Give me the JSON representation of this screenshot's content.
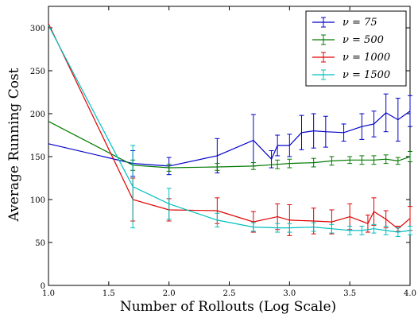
{
  "chart_data": {
    "type": "line",
    "title": "",
    "xlabel": "Number of Rollouts (Log Scale)",
    "ylabel": "Average Running Cost",
    "xlim": [
      1.0,
      4.0
    ],
    "ylim": [
      0,
      325
    ],
    "x_ticks": [
      "1.0",
      "1.5",
      "2.0",
      "2.5",
      "3.0",
      "3.5",
      "4.0"
    ],
    "y_ticks": [
      "0",
      "50",
      "100",
      "150",
      "200",
      "250",
      "300"
    ],
    "grid": false,
    "legend_position": "top-right",
    "series": [
      {
        "name": "ν = 75",
        "color": "#0000cc",
        "x": [
          1.0,
          1.7,
          2.0,
          2.4,
          2.7,
          2.85,
          2.9,
          3.0,
          3.1,
          3.2,
          3.3,
          3.45,
          3.6,
          3.7,
          3.8,
          3.9,
          4.0
        ],
        "y": [
          165,
          142,
          139,
          151,
          169,
          147,
          163,
          163,
          178,
          180,
          179,
          178,
          185,
          188,
          201,
          193,
          203
        ],
        "err": [
          0,
          15,
          10,
          20,
          30,
          10,
          12,
          13,
          20,
          20,
          18,
          10,
          15,
          15,
          22,
          25,
          18
        ]
      },
      {
        "name": "ν = 500",
        "color": "#007a00",
        "x": [
          1.0,
          1.7,
          2.0,
          2.4,
          2.7,
          2.9,
          3.0,
          3.2,
          3.35,
          3.5,
          3.6,
          3.7,
          3.8,
          3.9,
          4.0
        ],
        "y": [
          191,
          140,
          137,
          138,
          139,
          141,
          142,
          143,
          145,
          146,
          146,
          146,
          147,
          145,
          150
        ],
        "err": [
          0,
          6,
          4,
          4,
          4,
          5,
          5,
          5,
          5,
          4,
          5,
          5,
          5,
          4,
          6
        ]
      },
      {
        "name": "ν = 1000",
        "color": "#e00000",
        "x": [
          1.0,
          1.7,
          2.0,
          2.4,
          2.7,
          2.9,
          3.0,
          3.2,
          3.35,
          3.5,
          3.65,
          3.7,
          3.8,
          3.9,
          4.0
        ],
        "y": [
          305,
          100,
          88,
          87,
          74,
          80,
          76,
          75,
          74,
          80,
          72,
          86,
          77,
          66,
          78
        ],
        "err": [
          0,
          25,
          13,
          15,
          12,
          15,
          18,
          15,
          14,
          15,
          10,
          16,
          10,
          3,
          14
        ]
      },
      {
        "name": "ν = 1500",
        "color": "#00bfbf",
        "x": [
          1.0,
          1.7,
          2.0,
          2.4,
          2.7,
          2.9,
          3.0,
          3.2,
          3.35,
          3.5,
          3.6,
          3.7,
          3.8,
          3.9,
          4.0
        ],
        "y": [
          303,
          115,
          95,
          76,
          68,
          67,
          67,
          68,
          66,
          64,
          64,
          66,
          64,
          62,
          64
        ],
        "err": [
          0,
          48,
          18,
          8,
          5,
          5,
          5,
          5,
          5,
          5,
          5,
          5,
          5,
          5,
          5
        ]
      }
    ]
  }
}
